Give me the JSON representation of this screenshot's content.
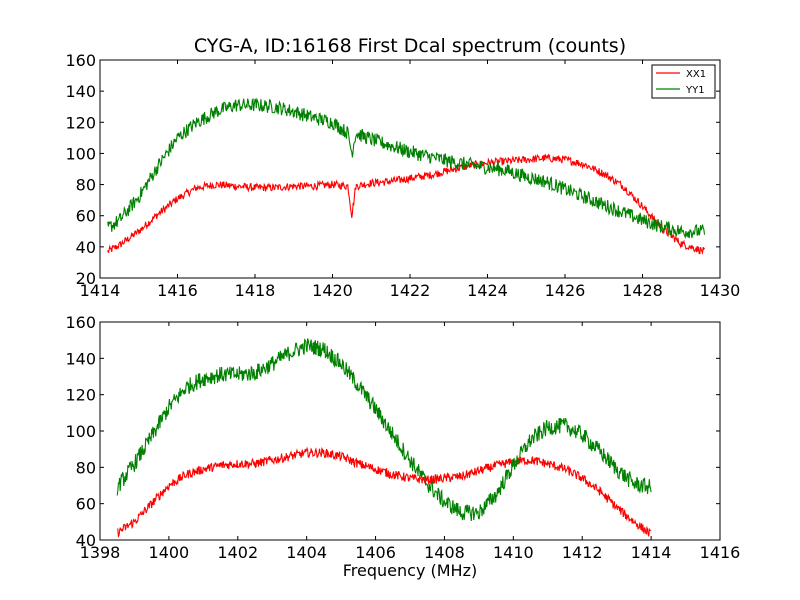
{
  "chart_data": [
    {
      "type": "line",
      "title": "CYG-A, ID:16168 First Dcal spectrum (counts)",
      "xlabel": "",
      "ylabel": "",
      "xlim": [
        1414,
        1430
      ],
      "ylim": [
        20,
        160
      ],
      "xticks": [
        "1414",
        "1416",
        "1418",
        "1420",
        "1422",
        "1424",
        "1426",
        "1428",
        "1430"
      ],
      "yticks": [
        "20",
        "40",
        "60",
        "80",
        "100",
        "120",
        "140",
        "160"
      ],
      "grid": false,
      "legend": {
        "placement": "top-right"
      },
      "series": [
        {
          "name": "XX1",
          "color": "#ff0000",
          "x": [
            1414.2,
            1414.5,
            1415.0,
            1415.5,
            1416.0,
            1416.5,
            1417.0,
            1417.5,
            1418.0,
            1418.5,
            1419.0,
            1419.5,
            1420.0,
            1420.4,
            1420.5,
            1420.6,
            1421.0,
            1421.5,
            1422.0,
            1422.5,
            1423.0,
            1423.5,
            1424.0,
            1424.5,
            1425.0,
            1425.5,
            1426.0,
            1426.5,
            1427.0,
            1427.5,
            1428.0,
            1428.5,
            1429.0,
            1429.6
          ],
          "values": [
            37,
            41,
            50,
            61,
            71,
            78,
            80,
            79,
            78,
            78,
            79,
            79,
            80,
            79,
            60,
            79,
            81,
            82,
            84,
            86,
            89,
            92,
            94,
            95,
            96,
            97,
            96,
            93,
            87,
            79,
            66,
            52,
            42,
            37
          ]
        },
        {
          "name": "YY1",
          "color": "#008000",
          "x": [
            1414.2,
            1414.5,
            1415.0,
            1415.5,
            1416.0,
            1416.5,
            1417.0,
            1417.5,
            1418.0,
            1418.5,
            1419.0,
            1419.5,
            1420.0,
            1420.4,
            1420.5,
            1420.6,
            1421.0,
            1421.5,
            1422.0,
            1422.5,
            1423.0,
            1423.5,
            1424.0,
            1424.5,
            1425.0,
            1425.5,
            1426.0,
            1426.5,
            1427.0,
            1427.5,
            1428.0,
            1428.5,
            1429.0,
            1429.6
          ],
          "values": [
            52,
            57,
            72,
            92,
            110,
            120,
            127,
            131,
            131,
            130,
            127,
            123,
            120,
            113,
            100,
            113,
            109,
            105,
            101,
            98,
            95,
            93,
            91,
            89,
            85,
            82,
            77,
            72,
            67,
            62,
            57,
            53,
            50,
            50
          ]
        }
      ]
    },
    {
      "type": "line",
      "title": "",
      "xlabel": "Frequency (MHz)",
      "ylabel": "",
      "xlim": [
        1398,
        1416
      ],
      "ylim": [
        40,
        160
      ],
      "xticks": [
        "1398",
        "1400",
        "1402",
        "1404",
        "1406",
        "1408",
        "1410",
        "1412",
        "1414",
        "1416"
      ],
      "yticks": [
        "40",
        "60",
        "80",
        "100",
        "120",
        "140",
        "160"
      ],
      "grid": false,
      "series": [
        {
          "color": "#ff0000",
          "x": [
            1398.5,
            1399.0,
            1399.5,
            1400.0,
            1400.5,
            1401.0,
            1401.5,
            1402.0,
            1402.5,
            1403.0,
            1403.5,
            1404.0,
            1404.5,
            1405.0,
            1405.5,
            1406.0,
            1406.5,
            1407.0,
            1407.5,
            1408.0,
            1408.5,
            1409.0,
            1409.5,
            1410.0,
            1410.5,
            1411.0,
            1411.5,
            1412.0,
            1412.5,
            1413.0,
            1413.5,
            1414.0
          ],
          "values": [
            44,
            50,
            60,
            70,
            76,
            79,
            81,
            82,
            82,
            84,
            86,
            88,
            88,
            86,
            82,
            79,
            76,
            74,
            73,
            74,
            75,
            78,
            81,
            83,
            84,
            82,
            79,
            74,
            67,
            58,
            50,
            43
          ]
        },
        {
          "color": "#008000",
          "x": [
            1398.5,
            1399.0,
            1399.5,
            1400.0,
            1400.5,
            1401.0,
            1401.5,
            1402.0,
            1402.5,
            1403.0,
            1403.5,
            1404.0,
            1404.5,
            1405.0,
            1405.5,
            1406.0,
            1406.5,
            1407.0,
            1407.5,
            1408.0,
            1408.5,
            1409.0,
            1409.5,
            1410.0,
            1410.5,
            1411.0,
            1411.5,
            1412.0,
            1412.5,
            1413.0,
            1413.5,
            1414.0
          ],
          "values": [
            69,
            82,
            97,
            113,
            124,
            129,
            131,
            131,
            132,
            137,
            143,
            147,
            145,
            137,
            125,
            112,
            98,
            84,
            71,
            61,
            55,
            55,
            65,
            81,
            95,
            102,
            103,
            98,
            89,
            79,
            71,
            69
          ]
        }
      ]
    }
  ]
}
